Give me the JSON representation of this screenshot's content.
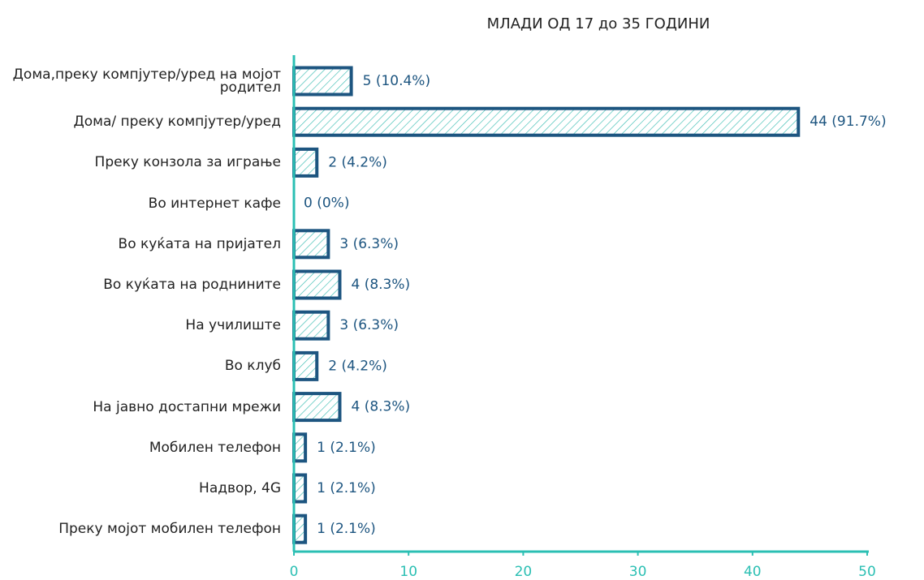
{
  "chart_data": {
    "type": "bar",
    "orientation": "horizontal",
    "title": "МЛАДИ ОД 17 до 35 ГОДИНИ",
    "categories": [
      "Дома,преку компјутер/уред на мојот родител",
      "Дома/ преку компјутер/уред",
      "Преку конзола за играње",
      "Во интернет кафе",
      "Во куќата на пријател",
      "Во куќата на роднините",
      "На училиште",
      "Во клуб",
      "На јавно достапни мрежи",
      "Мобилен телефон",
      "Надвор, 4G",
      "Преку мојот мобилен телефон"
    ],
    "values": [
      5,
      44,
      2,
      0,
      3,
      4,
      3,
      2,
      4,
      1,
      1,
      1
    ],
    "value_labels": [
      "5 (10.4%)",
      "44 (91.7%)",
      "2 (4.2%)",
      "0 (0%)",
      "3 (6.3%)",
      "4 (8.3%)",
      "3 (6.3%)",
      "2 (4.2%)",
      "4 (8.3%)",
      "1 (2.1%)",
      "1 (2.1%)",
      "1 (2.1%)"
    ],
    "color": "#1d5580",
    "hatch_color": "#3dbdb3",
    "axis_color": "#2bbfb3",
    "xlim": [
      0,
      50
    ],
    "xticks": [
      0,
      10,
      20,
      30,
      40,
      50
    ]
  }
}
